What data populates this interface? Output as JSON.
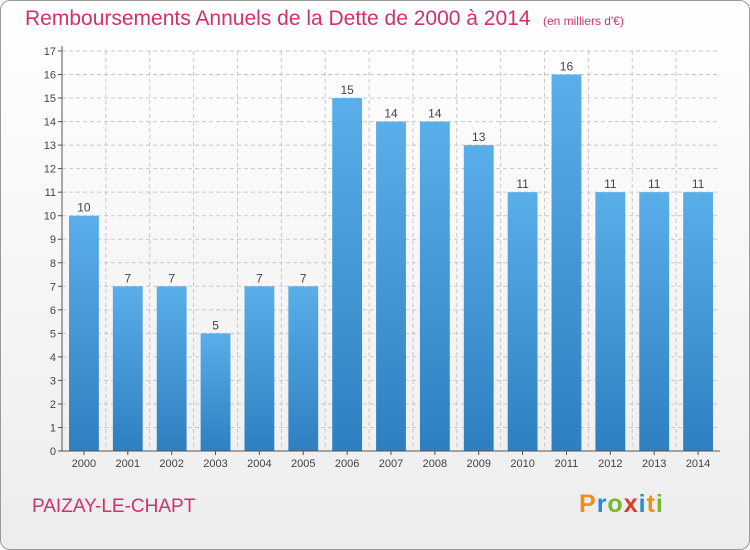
{
  "chart_data": {
    "type": "bar",
    "title": "Remboursements Annuels de la Dette de 2000 à 2014",
    "unit_note": "(en milliers d'€)",
    "categories": [
      "2000",
      "2001",
      "2002",
      "2003",
      "2004",
      "2005",
      "2006",
      "2007",
      "2008",
      "2009",
      "2010",
      "2011",
      "2012",
      "2013",
      "2014"
    ],
    "values": [
      10,
      7,
      7,
      5,
      7,
      7,
      15,
      14,
      14,
      13,
      11,
      16,
      11,
      11,
      11
    ],
    "ylim": [
      0,
      17
    ],
    "yticks": [
      0,
      1,
      2,
      3,
      4,
      5,
      6,
      7,
      8,
      9,
      10,
      11,
      12,
      13,
      14,
      15,
      16,
      17
    ],
    "grid": true,
    "bar_color_top": "#5aaee9",
    "bar_color_bottom": "#2e7fc0",
    "grid_color": "#c8c8c8"
  },
  "footer": {
    "commune": "PAIZAY-LE-CHAPT",
    "logo_text": "Proxiti"
  },
  "colors": {
    "accent": "#d2306d"
  }
}
